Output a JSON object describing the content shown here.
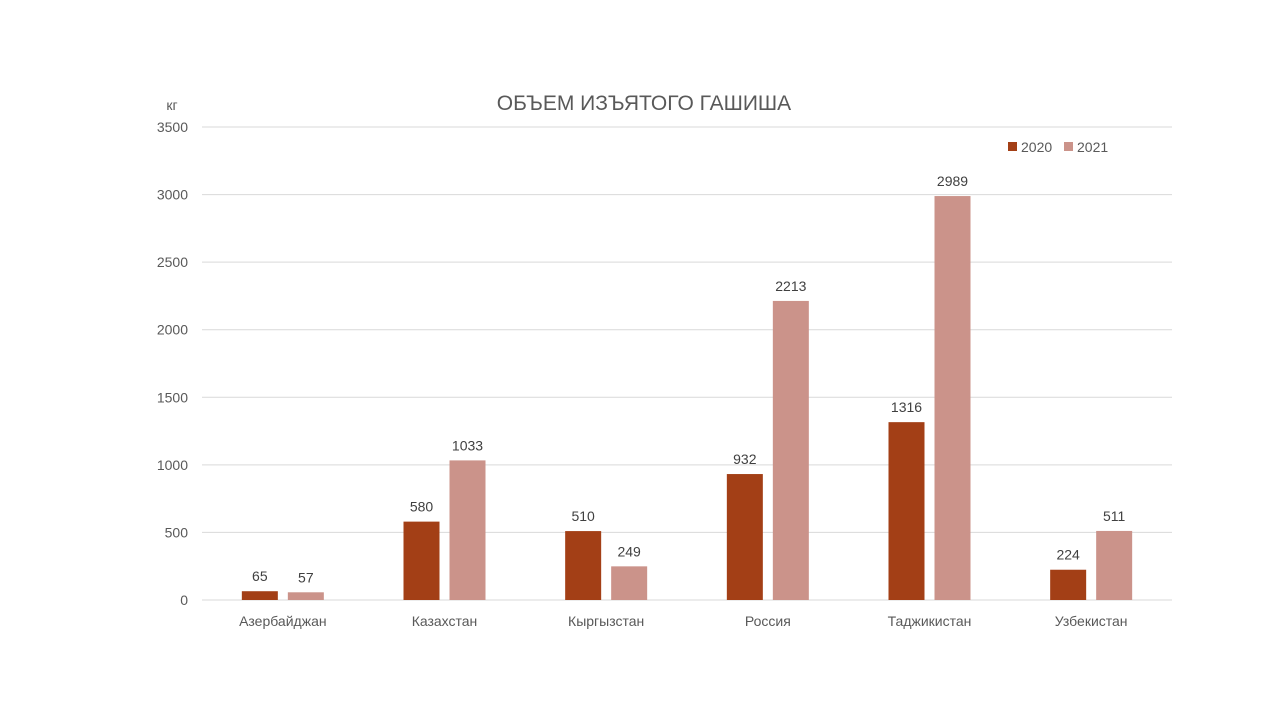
{
  "chart_data": {
    "type": "bar",
    "title": "ОБЪЕМ ИЗЪЯТОГО ГАШИША",
    "ylabel": "кг",
    "xlabel": "",
    "ylim": [
      0,
      3500
    ],
    "yticks": [
      0,
      500,
      1000,
      1500,
      2000,
      2500,
      3000,
      3500
    ],
    "grid": true,
    "legend_position": "top-right",
    "categories": [
      "Азербайджан",
      "Казахстан",
      "Кыргызстан",
      "Россия",
      "Таджикистан",
      "Узбекистан"
    ],
    "series": [
      {
        "name": "2020",
        "color": "#A33F16",
        "values": [
          65,
          580,
          510,
          932,
          1316,
          224
        ]
      },
      {
        "name": "2021",
        "color": "#CB938A",
        "values": [
          57,
          1033,
          249,
          2213,
          2989,
          511
        ]
      }
    ]
  }
}
